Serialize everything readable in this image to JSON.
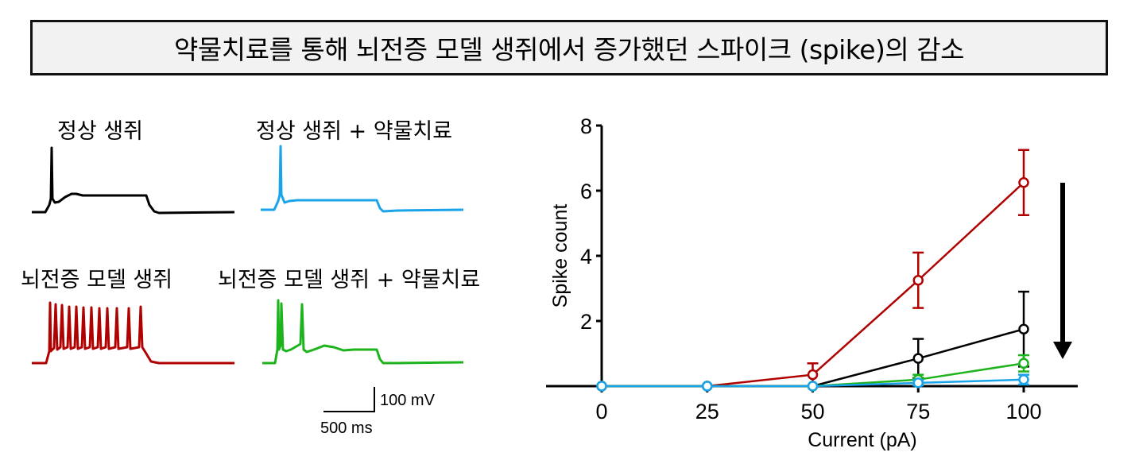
{
  "title": "약물치료를 통해 뇌전증 모델 생쥐에서 증가했던 스파이크 (spike)의 감소",
  "traces": {
    "labels": {
      "normal": "정상 생쥐",
      "normal_drug": "정상 생쥐 + 약물치료",
      "epilepsy": "뇌전증 모델 생쥐",
      "epilepsy_drug": "뇌전증 모델 생쥐 + 약물치료"
    },
    "colors": {
      "normal": "#000000",
      "normal_drug": "#1aa3e8",
      "epilepsy": "#b00000",
      "epilepsy_drug": "#1db31d"
    },
    "scale_bar": {
      "voltage": "100 mV",
      "time": "500 ms"
    }
  },
  "chart_data": {
    "type": "line",
    "title": "",
    "xlabel": "Current (pA)",
    "ylabel": "Spike count",
    "x": [
      0,
      25,
      50,
      75,
      100
    ],
    "xticks": [
      "0",
      "25",
      "50",
      "75",
      "100"
    ],
    "yticks": [
      "2",
      "4",
      "6",
      "8"
    ],
    "ylim": [
      0,
      8
    ],
    "xlim": [
      -5,
      110
    ],
    "grid": false,
    "legend": "none (series identified by trace colors)",
    "annotation": "downward arrow at right indicating decrease",
    "series": [
      {
        "name": "뇌전증 모델 생쥐",
        "color": "#b00000",
        "values": [
          0,
          0,
          0.35,
          3.25,
          6.25
        ],
        "error": [
          0,
          0,
          0.35,
          0.85,
          1.0
        ]
      },
      {
        "name": "정상 생쥐",
        "color": "#000000",
        "values": [
          0,
          0,
          0,
          0.85,
          1.75
        ],
        "error": [
          0,
          0,
          0,
          0.6,
          1.15
        ]
      },
      {
        "name": "뇌전증 모델 생쥐 + 약물치료",
        "color": "#1db31d",
        "values": [
          0,
          0,
          0,
          0.2,
          0.7
        ],
        "error": [
          0,
          0,
          0,
          0.15,
          0.25
        ]
      },
      {
        "name": "정상 생쥐 + 약물치료",
        "color": "#1aa3e8",
        "values": [
          0,
          0,
          0,
          0.1,
          0.2
        ],
        "error": [
          0,
          0,
          0,
          0.08,
          0.15
        ]
      }
    ]
  }
}
